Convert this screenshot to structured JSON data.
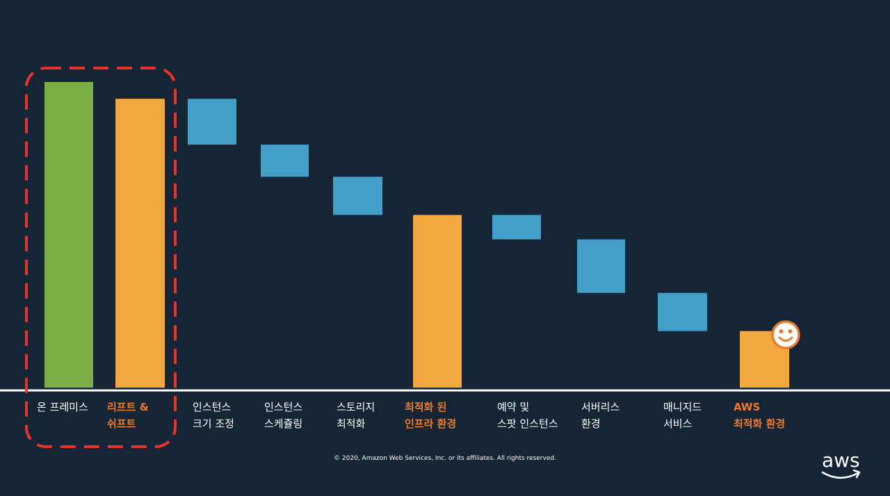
{
  "chart_data": {
    "type": "waterfall",
    "categories": [
      [
        "온 프레미스"
      ],
      [
        "리프트 &",
        "쉬프트"
      ],
      [
        "인스턴스",
        "크기 조정"
      ],
      [
        "인스턴스",
        "스케쥴링"
      ],
      [
        "스토리지",
        "최적화"
      ],
      [
        "최적화 된",
        "인프라 환경"
      ],
      [
        "예약 및",
        "스팟 인스턴스"
      ],
      [
        "서버리스",
        "환경"
      ],
      [
        "매니지드",
        "서비스"
      ],
      [
        "AWS",
        "최적화 환경"
      ]
    ],
    "bars": [
      {
        "kind": "total",
        "start": 0,
        "end": 100,
        "color": "#7cb046",
        "highlight": false
      },
      {
        "kind": "total",
        "start": 0,
        "end": 94.5,
        "color": "#f3a73f",
        "highlight": true
      },
      {
        "kind": "step",
        "start": 79.5,
        "end": 94.5,
        "color": "#429fc8",
        "highlight": false
      },
      {
        "kind": "step",
        "start": 69,
        "end": 79.5,
        "color": "#429fc8",
        "highlight": false
      },
      {
        "kind": "step",
        "start": 56.5,
        "end": 69,
        "color": "#429fc8",
        "highlight": false
      },
      {
        "kind": "total",
        "start": 0,
        "end": 56.5,
        "color": "#f3a73f",
        "highlight": true
      },
      {
        "kind": "step",
        "start": 48.5,
        "end": 56.5,
        "color": "#429fc8",
        "highlight": false
      },
      {
        "kind": "step",
        "start": 31,
        "end": 48.5,
        "color": "#429fc8",
        "highlight": false
      },
      {
        "kind": "step",
        "start": 18.5,
        "end": 31,
        "color": "#429fc8",
        "highlight": false
      },
      {
        "kind": "total",
        "start": 0,
        "end": 18.5,
        "color": "#f3a73f",
        "highlight": true
      }
    ],
    "ylim": [
      0,
      100
    ],
    "grid": false,
    "legend": "none",
    "title": "",
    "xlabel": "",
    "ylabel": ""
  },
  "annotations": {
    "group_box_color": "#e8342a",
    "smiley_icon": "smiley-face-icon",
    "smiley_color": "#ec7b2c"
  },
  "colors": {
    "background": "#152535",
    "highlight_text": "#ec7b2c",
    "axis": "#ffffff"
  },
  "footer": {
    "copyright": "© 2020, Amazon Web Services, Inc. or its affiliates. All rights reserved."
  },
  "logo": {
    "name": "aws-logo",
    "text": "aws"
  }
}
